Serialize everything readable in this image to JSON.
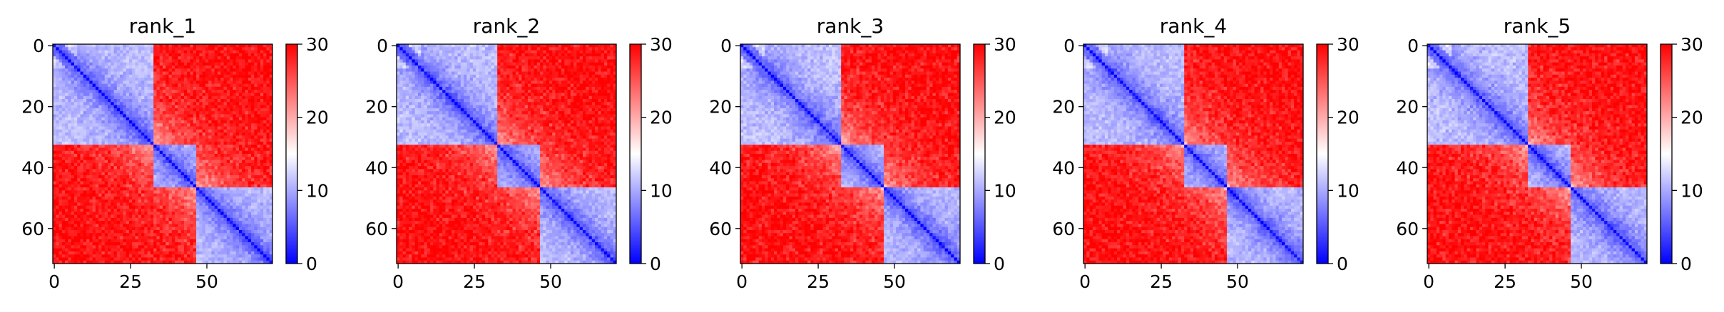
{
  "chart_data": [
    {
      "type": "heatmap",
      "title": "rank_1",
      "xticks": [
        0,
        25,
        50
      ],
      "yticks": [
        0,
        20,
        40,
        60
      ],
      "colorbar": {
        "ticks": [
          0,
          10,
          20,
          30
        ],
        "range": [
          0,
          30
        ],
        "colormap": "bwr"
      },
      "n": 72,
      "axis_range": [
        0,
        71
      ],
      "domains": [
        [
          0,
          33
        ],
        [
          33,
          47
        ],
        [
          47,
          72
        ]
      ],
      "colors": {
        "low": "#0000ff",
        "mid": "#ffffff",
        "high": "#ff0000"
      }
    },
    {
      "type": "heatmap",
      "title": "rank_2",
      "xticks": [
        0,
        25,
        50
      ],
      "yticks": [
        0,
        20,
        40,
        60
      ],
      "colorbar": {
        "ticks": [
          0,
          10,
          20,
          30
        ],
        "range": [
          0,
          30
        ],
        "colormap": "bwr"
      },
      "n": 72,
      "axis_range": [
        0,
        71
      ],
      "domains": [
        [
          0,
          33
        ],
        [
          33,
          47
        ],
        [
          47,
          72
        ]
      ],
      "colors": {
        "low": "#0000ff",
        "mid": "#ffffff",
        "high": "#ff0000"
      }
    },
    {
      "type": "heatmap",
      "title": "rank_3",
      "xticks": [
        0,
        25,
        50
      ],
      "yticks": [
        0,
        20,
        40,
        60
      ],
      "colorbar": {
        "ticks": [
          0,
          10,
          20,
          30
        ],
        "range": [
          0,
          30
        ],
        "colormap": "bwr"
      },
      "n": 72,
      "axis_range": [
        0,
        71
      ],
      "domains": [
        [
          0,
          33
        ],
        [
          33,
          47
        ],
        [
          47,
          72
        ]
      ],
      "colors": {
        "low": "#0000ff",
        "mid": "#ffffff",
        "high": "#ff0000"
      }
    },
    {
      "type": "heatmap",
      "title": "rank_4",
      "xticks": [
        0,
        25,
        50
      ],
      "yticks": [
        0,
        20,
        40,
        60
      ],
      "colorbar": {
        "ticks": [
          0,
          10,
          20,
          30
        ],
        "range": [
          0,
          30
        ],
        "colormap": "bwr"
      },
      "n": 72,
      "axis_range": [
        0,
        71
      ],
      "domains": [
        [
          0,
          33
        ],
        [
          33,
          47
        ],
        [
          47,
          72
        ]
      ],
      "colors": {
        "low": "#0000ff",
        "mid": "#ffffff",
        "high": "#ff0000"
      }
    },
    {
      "type": "heatmap",
      "title": "rank_5",
      "xticks": [
        0,
        25,
        50
      ],
      "yticks": [
        0,
        20,
        40,
        60
      ],
      "colorbar": {
        "ticks": [
          0,
          10,
          20,
          30
        ],
        "range": [
          0,
          30
        ],
        "colormap": "bwr"
      },
      "n": 72,
      "axis_range": [
        0,
        71
      ],
      "domains": [
        [
          0,
          33
        ],
        [
          33,
          47
        ],
        [
          47,
          72
        ]
      ],
      "colors": {
        "low": "#0000ff",
        "mid": "#ffffff",
        "high": "#ff0000"
      }
    }
  ]
}
